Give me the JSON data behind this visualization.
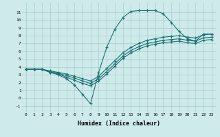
{
  "xlabel": "Humidex (Indice chaleur)",
  "ylabel": "",
  "bg_color": "#ceeaea",
  "grid_color": "#a8cccc",
  "line_color": "#1a7070",
  "xlim": [
    -0.5,
    23.5
  ],
  "ylim": [
    -1.8,
    12.2
  ],
  "yticks": [
    -1,
    0,
    1,
    2,
    3,
    4,
    5,
    6,
    7,
    8,
    9,
    10,
    11
  ],
  "xticks": [
    0,
    1,
    2,
    3,
    4,
    5,
    6,
    7,
    8,
    9,
    10,
    11,
    12,
    13,
    14,
    15,
    16,
    17,
    18,
    19,
    20,
    21,
    22,
    23
  ],
  "line1_x": [
    0,
    1,
    2,
    3,
    4,
    5,
    6,
    7,
    8,
    9,
    10,
    11,
    12,
    13,
    14,
    15,
    16,
    17,
    18,
    19,
    20,
    21,
    22,
    23
  ],
  "line1_y": [
    3.7,
    3.7,
    3.7,
    3.3,
    3.0,
    2.5,
    1.7,
    0.5,
    -0.7,
    3.3,
    6.5,
    8.8,
    10.3,
    11.1,
    11.2,
    11.2,
    11.2,
    10.8,
    9.7,
    8.5,
    7.6,
    7.3,
    8.2,
    8.2
  ],
  "line2_x": [
    0,
    1,
    2,
    3,
    4,
    5,
    6,
    7,
    8,
    9,
    10,
    11,
    12,
    13,
    14,
    15,
    16,
    17,
    18,
    19,
    20,
    21,
    22,
    23
  ],
  "line2_y": [
    3.7,
    3.7,
    3.7,
    3.5,
    3.3,
    3.1,
    2.8,
    2.5,
    2.2,
    2.8,
    3.8,
    4.8,
    5.8,
    6.5,
    7.0,
    7.4,
    7.6,
    7.8,
    7.9,
    8.0,
    7.8,
    7.7,
    8.1,
    8.2
  ],
  "line3_x": [
    0,
    1,
    2,
    3,
    4,
    5,
    6,
    7,
    8,
    9,
    10,
    11,
    12,
    13,
    14,
    15,
    16,
    17,
    18,
    19,
    20,
    21,
    22,
    23
  ],
  "line3_y": [
    3.7,
    3.7,
    3.7,
    3.4,
    3.2,
    2.9,
    2.6,
    2.2,
    1.9,
    2.5,
    3.4,
    4.4,
    5.4,
    6.1,
    6.6,
    7.0,
    7.2,
    7.4,
    7.5,
    7.6,
    7.4,
    7.3,
    7.7,
    7.8
  ],
  "line4_x": [
    0,
    1,
    2,
    3,
    4,
    5,
    6,
    7,
    8,
    9,
    10,
    11,
    12,
    13,
    14,
    15,
    16,
    17,
    18,
    19,
    20,
    21,
    22,
    23
  ],
  "line4_y": [
    3.7,
    3.7,
    3.7,
    3.3,
    3.1,
    2.7,
    2.3,
    1.9,
    1.6,
    2.2,
    3.1,
    4.1,
    5.1,
    5.8,
    6.3,
    6.7,
    6.9,
    7.1,
    7.2,
    7.3,
    7.1,
    7.0,
    7.4,
    7.5
  ]
}
